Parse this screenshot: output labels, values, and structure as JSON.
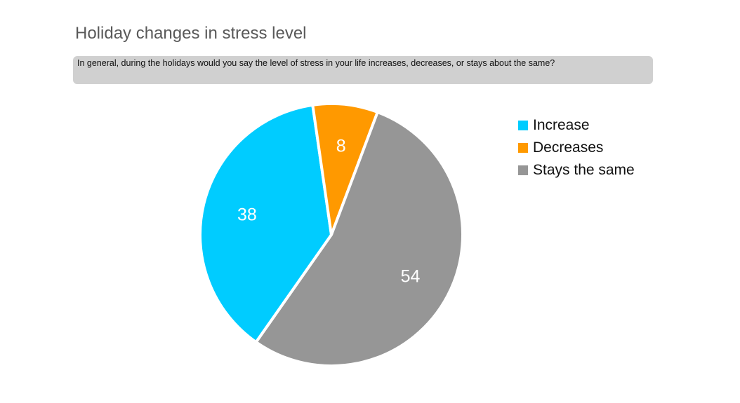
{
  "chart_data": {
    "type": "pie",
    "title": "Holiday changes in stress level",
    "subtitle": "In general, during the holidays would you say the level of stress in your life increases, decreases, or stays about the same?",
    "categories": [
      "Increase",
      "Decreases",
      "Stays the same"
    ],
    "values": [
      38,
      8,
      54
    ],
    "colors": [
      "#00CCFF",
      "#FF9900",
      "#969696"
    ],
    "data_labels": [
      "38",
      "8",
      "54"
    ],
    "legend_position": "right"
  }
}
